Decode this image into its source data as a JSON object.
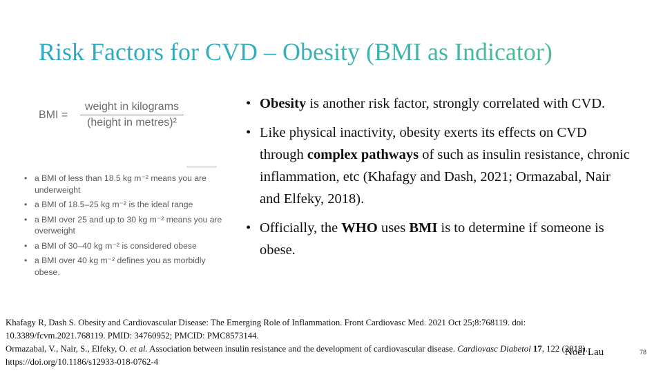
{
  "slide": {
    "title": "Risk Factors for CVD – Obesity (BMI as Indicator)",
    "formula": {
      "lhs": "BMI =",
      "numerator": "weight in kilograms",
      "denominator": "(height in metres)²"
    },
    "bmi_bullets": [
      "a BMI of less than 18.5 kg m⁻² means you are underweight",
      "a BMI of 18.5–25 kg m⁻² is the ideal range",
      "a BMI over 25 and up to 30 kg m⁻² means you are overweight",
      "a BMI of 30–40 kg m⁻² is considered obese",
      "a BMI over 40 kg m⁻² defines you as morbidly obese."
    ],
    "bullet_glyph": "•",
    "main_bullets": {
      "b1_bold": "Obesity",
      "b1_rest": " is another risk factor, strongly correlated with CVD.",
      "b2_a": "Like physical inactivity, obesity exerts its effects on CVD through ",
      "b2_bold": "complex pathways",
      "b2_b": " of  such as insulin resistance, chronic inflammation, etc (Khafagy and Dash, 2021; Ormazabal, Nair and Elfeky, 2018).",
      "b3_a": "Officially, the ",
      "b3_bold1": "WHO",
      "b3_b": " uses ",
      "b3_bold2": "BMI",
      "b3_c": " is to determine if someone is obese."
    },
    "references": {
      "ref1": "Khafagy R, Dash S. Obesity and Cardiovascular Disease: The Emerging Role of Inflammation. Front Cardiovasc Med. 2021 Oct 25;8:768119. doi: 10.3389/fcvm.2021.768119. PMID: 34760952; PMCID: PMC8573144.",
      "ref2_a": "Ormazabal, V., Nair, S., Elfeky, O. ",
      "ref2_etal": "et al.",
      "ref2_b": " Association between insulin resistance and the development of cardiovascular disease. ",
      "ref2_journal": "Cardiovasc Diabetol",
      "ref2_vol": " 17",
      "ref2_c": ", 122 (2018). https://doi.org/10.1186/s12933-018-0762-4"
    },
    "author": "Noel Lau",
    "page_number": "78",
    "colors": {
      "title_start": "#2aa8c9",
      "title_end": "#5cbf86",
      "body_text": "#111111",
      "panel_text": "#5a5a5a"
    }
  }
}
